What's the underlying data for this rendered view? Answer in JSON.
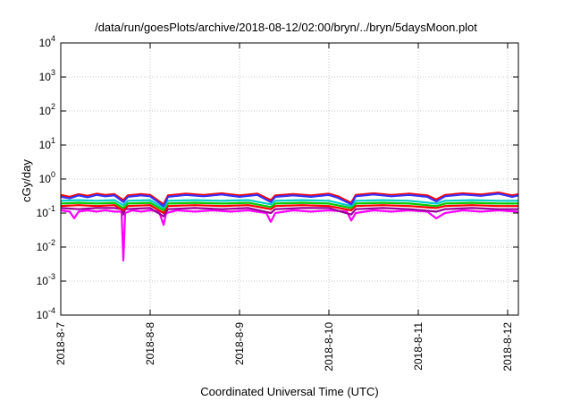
{
  "chart_data": {
    "type": "line",
    "title": "/data/run/goesPlots/archive/2018-08-12/02:00/bryn/../bryn/5daysMoon.plot",
    "xlabel": "Coordinated Universal Time (UTC)",
    "ylabel": "cGy/day",
    "yscale": "log",
    "ylim": [
      0.0001,
      10000
    ],
    "xlim": [
      0,
      5.12
    ],
    "grid": true,
    "y_ticks": [
      {
        "exp": "-4",
        "value": 0.0001
      },
      {
        "exp": "-3",
        "value": 0.001
      },
      {
        "exp": "-2",
        "value": 0.01
      },
      {
        "exp": "-1",
        "value": 0.1
      },
      {
        "exp": "0",
        "value": 1
      },
      {
        "exp": "1",
        "value": 10
      },
      {
        "exp": "2",
        "value": 100
      },
      {
        "exp": "3",
        "value": 1000
      },
      {
        "exp": "4",
        "value": 10000
      }
    ],
    "tick_base": "10",
    "x_ticks": [
      {
        "label": "2018-8-7",
        "day": 0
      },
      {
        "label": "2018-8-8",
        "day": 1
      },
      {
        "label": "2018-8-9",
        "day": 2
      },
      {
        "label": "2018-8-10",
        "day": 3
      },
      {
        "label": "2018-8-11",
        "day": 4
      },
      {
        "label": "2018-8-12",
        "day": 5
      }
    ],
    "series": [
      {
        "color": "#ff00ff",
        "values": [
          [
            0.0,
            0.12
          ],
          [
            0.1,
            0.11
          ],
          [
            0.15,
            0.07
          ],
          [
            0.2,
            0.11
          ],
          [
            0.3,
            0.12
          ],
          [
            0.4,
            0.11
          ],
          [
            0.5,
            0.12
          ],
          [
            0.6,
            0.11
          ],
          [
            0.68,
            0.11
          ],
          [
            0.7,
            0.004
          ],
          [
            0.72,
            0.1
          ],
          [
            0.8,
            0.12
          ],
          [
            0.9,
            0.11
          ],
          [
            1.0,
            0.12
          ],
          [
            1.1,
            0.11
          ],
          [
            1.15,
            0.045
          ],
          [
            1.18,
            0.1
          ],
          [
            1.3,
            0.12
          ],
          [
            1.5,
            0.11
          ],
          [
            1.7,
            0.12
          ],
          [
            1.9,
            0.11
          ],
          [
            2.1,
            0.12
          ],
          [
            2.3,
            0.1
          ],
          [
            2.35,
            0.055
          ],
          [
            2.4,
            0.1
          ],
          [
            2.6,
            0.12
          ],
          [
            2.8,
            0.11
          ],
          [
            3.0,
            0.12
          ],
          [
            3.2,
            0.11
          ],
          [
            3.25,
            0.06
          ],
          [
            3.3,
            0.1
          ],
          [
            3.5,
            0.12
          ],
          [
            3.7,
            0.11
          ],
          [
            3.9,
            0.12
          ],
          [
            4.1,
            0.11
          ],
          [
            4.2,
            0.07
          ],
          [
            4.3,
            0.1
          ],
          [
            4.5,
            0.12
          ],
          [
            4.7,
            0.11
          ],
          [
            4.9,
            0.12
          ],
          [
            5.1,
            0.11
          ],
          [
            5.12,
            0.1
          ]
        ]
      },
      {
        "color": "#990099",
        "values": [
          [
            0.0,
            0.14
          ],
          [
            0.2,
            0.13
          ],
          [
            0.4,
            0.14
          ],
          [
            0.6,
            0.14
          ],
          [
            0.68,
            0.13
          ],
          [
            0.7,
            0.09
          ],
          [
            0.72,
            0.13
          ],
          [
            1.0,
            0.14
          ],
          [
            1.15,
            0.08
          ],
          [
            1.2,
            0.13
          ],
          [
            1.5,
            0.14
          ],
          [
            1.8,
            0.13
          ],
          [
            2.1,
            0.14
          ],
          [
            2.35,
            0.1
          ],
          [
            2.4,
            0.13
          ],
          [
            2.7,
            0.14
          ],
          [
            3.0,
            0.14
          ],
          [
            3.25,
            0.09
          ],
          [
            3.3,
            0.13
          ],
          [
            3.6,
            0.14
          ],
          [
            3.9,
            0.13
          ],
          [
            4.2,
            0.11
          ],
          [
            4.3,
            0.13
          ],
          [
            4.6,
            0.14
          ],
          [
            4.9,
            0.13
          ],
          [
            5.12,
            0.13
          ]
        ]
      },
      {
        "color": "#ff0000",
        "values": [
          [
            0.0,
            0.16
          ],
          [
            0.2,
            0.17
          ],
          [
            0.4,
            0.16
          ],
          [
            0.6,
            0.17
          ],
          [
            0.7,
            0.12
          ],
          [
            0.75,
            0.16
          ],
          [
            1.0,
            0.17
          ],
          [
            1.15,
            0.1
          ],
          [
            1.2,
            0.16
          ],
          [
            1.5,
            0.17
          ],
          [
            1.8,
            0.16
          ],
          [
            2.1,
            0.17
          ],
          [
            2.35,
            0.13
          ],
          [
            2.4,
            0.16
          ],
          [
            2.7,
            0.17
          ],
          [
            3.0,
            0.16
          ],
          [
            3.25,
            0.12
          ],
          [
            3.3,
            0.16
          ],
          [
            3.6,
            0.17
          ],
          [
            3.9,
            0.16
          ],
          [
            4.2,
            0.14
          ],
          [
            4.3,
            0.16
          ],
          [
            4.6,
            0.17
          ],
          [
            4.9,
            0.16
          ],
          [
            5.12,
            0.16
          ]
        ]
      },
      {
        "color": "#00cc00",
        "values": [
          [
            0.0,
            0.19
          ],
          [
            0.2,
            0.2
          ],
          [
            0.4,
            0.19
          ],
          [
            0.6,
            0.2
          ],
          [
            0.7,
            0.14
          ],
          [
            0.75,
            0.19
          ],
          [
            1.0,
            0.2
          ],
          [
            1.15,
            0.12
          ],
          [
            1.2,
            0.19
          ],
          [
            1.5,
            0.2
          ],
          [
            1.8,
            0.19
          ],
          [
            2.1,
            0.2
          ],
          [
            2.35,
            0.15
          ],
          [
            2.4,
            0.19
          ],
          [
            2.7,
            0.2
          ],
          [
            3.0,
            0.19
          ],
          [
            3.25,
            0.14
          ],
          [
            3.3,
            0.19
          ],
          [
            3.6,
            0.2
          ],
          [
            3.9,
            0.19
          ],
          [
            4.2,
            0.16
          ],
          [
            4.3,
            0.19
          ],
          [
            4.6,
            0.2
          ],
          [
            4.9,
            0.19
          ],
          [
            5.12,
            0.19
          ]
        ]
      },
      {
        "color": "#00cccc",
        "values": [
          [
            0.0,
            0.23
          ],
          [
            0.2,
            0.24
          ],
          [
            0.4,
            0.23
          ],
          [
            0.6,
            0.24
          ],
          [
            0.7,
            0.17
          ],
          [
            0.75,
            0.23
          ],
          [
            1.0,
            0.24
          ],
          [
            1.15,
            0.14
          ],
          [
            1.2,
            0.23
          ],
          [
            1.5,
            0.24
          ],
          [
            1.8,
            0.23
          ],
          [
            2.1,
            0.24
          ],
          [
            2.35,
            0.18
          ],
          [
            2.4,
            0.23
          ],
          [
            2.7,
            0.24
          ],
          [
            3.0,
            0.23
          ],
          [
            3.25,
            0.16
          ],
          [
            3.3,
            0.23
          ],
          [
            3.6,
            0.24
          ],
          [
            3.9,
            0.23
          ],
          [
            4.2,
            0.19
          ],
          [
            4.3,
            0.23
          ],
          [
            4.6,
            0.24
          ],
          [
            4.9,
            0.23
          ],
          [
            5.12,
            0.23
          ]
        ]
      },
      {
        "color": "#ff0000",
        "values": [
          [
            0.0,
            0.34
          ],
          [
            0.1,
            0.3
          ],
          [
            0.2,
            0.36
          ],
          [
            0.3,
            0.32
          ],
          [
            0.4,
            0.37
          ],
          [
            0.5,
            0.34
          ],
          [
            0.6,
            0.36
          ],
          [
            0.7,
            0.24
          ],
          [
            0.75,
            0.33
          ],
          [
            0.9,
            0.36
          ],
          [
            1.0,
            0.34
          ],
          [
            1.15,
            0.18
          ],
          [
            1.2,
            0.33
          ],
          [
            1.4,
            0.37
          ],
          [
            1.6,
            0.34
          ],
          [
            1.8,
            0.38
          ],
          [
            2.0,
            0.33
          ],
          [
            2.2,
            0.37
          ],
          [
            2.35,
            0.24
          ],
          [
            2.4,
            0.33
          ],
          [
            2.6,
            0.36
          ],
          [
            2.8,
            0.33
          ],
          [
            3.0,
            0.37
          ],
          [
            3.1,
            0.31
          ],
          [
            3.25,
            0.2
          ],
          [
            3.3,
            0.34
          ],
          [
            3.5,
            0.38
          ],
          [
            3.7,
            0.34
          ],
          [
            3.9,
            0.37
          ],
          [
            4.1,
            0.33
          ],
          [
            4.2,
            0.25
          ],
          [
            4.3,
            0.34
          ],
          [
            4.5,
            0.38
          ],
          [
            4.7,
            0.35
          ],
          [
            4.9,
            0.4
          ],
          [
            5.05,
            0.33
          ],
          [
            5.12,
            0.36
          ]
        ]
      },
      {
        "color": "#3333ff",
        "values": [
          [
            0.0,
            0.3
          ],
          [
            0.1,
            0.27
          ],
          [
            0.2,
            0.33
          ],
          [
            0.3,
            0.29
          ],
          [
            0.4,
            0.34
          ],
          [
            0.5,
            0.31
          ],
          [
            0.6,
            0.33
          ],
          [
            0.7,
            0.21
          ],
          [
            0.75,
            0.3
          ],
          [
            0.9,
            0.33
          ],
          [
            1.0,
            0.31
          ],
          [
            1.15,
            0.16
          ],
          [
            1.2,
            0.3
          ],
          [
            1.4,
            0.34
          ],
          [
            1.6,
            0.31
          ],
          [
            1.8,
            0.35
          ],
          [
            2.0,
            0.3
          ],
          [
            2.2,
            0.34
          ],
          [
            2.35,
            0.21
          ],
          [
            2.4,
            0.3
          ],
          [
            2.6,
            0.33
          ],
          [
            2.8,
            0.3
          ],
          [
            3.0,
            0.34
          ],
          [
            3.1,
            0.28
          ],
          [
            3.25,
            0.18
          ],
          [
            3.3,
            0.31
          ],
          [
            3.5,
            0.35
          ],
          [
            3.7,
            0.31
          ],
          [
            3.9,
            0.34
          ],
          [
            4.1,
            0.3
          ],
          [
            4.2,
            0.22
          ],
          [
            4.3,
            0.31
          ],
          [
            4.5,
            0.35
          ],
          [
            4.7,
            0.32
          ],
          [
            4.9,
            0.37
          ],
          [
            5.05,
            0.3
          ],
          [
            5.12,
            0.33
          ]
        ]
      }
    ]
  }
}
